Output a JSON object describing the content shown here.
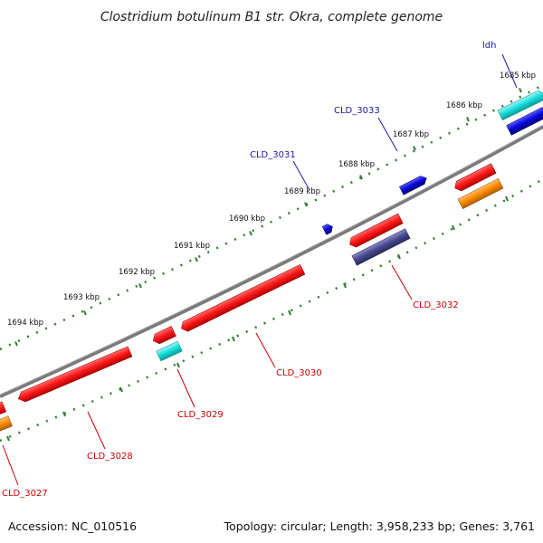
{
  "title": "Clostridium botulinum B1 str. Okra, complete genome",
  "footer": {
    "accession": "Accession: NC_010516",
    "summary": "Topology: circular; Length: 3,958,233 bp; Genes: 3,761"
  },
  "ticks": [
    "1685 kbp",
    "1686 kbp",
    "1687 kbp",
    "1688 kbp",
    "1689 kbp",
    "1690 kbp",
    "1691 kbp",
    "1692 kbp",
    "1693 kbp",
    "1694 kbp"
  ],
  "colors": {
    "backbone": "#7a7a7a",
    "tick": "#2f7d2f",
    "forward_label": "#1a1aa6",
    "reverse_label": "#cc0000",
    "gene_red": "#ff1a1a",
    "gene_blue": "#0a0ae0",
    "gene_cyan": "#19e0e0",
    "gene_orange": "#ff8c00",
    "gene_navy": "#4a4a90"
  },
  "labels": {
    "ldh": "ldh",
    "cld_3033": "CLD_3033",
    "cld_3031": "CLD_3031",
    "cld_3032": "CLD_3032",
    "cld_3030": "CLD_3030",
    "cld_3029": "CLD_3029",
    "cld_3028": "CLD_3028",
    "cld_3027": "CLD_3027"
  }
}
